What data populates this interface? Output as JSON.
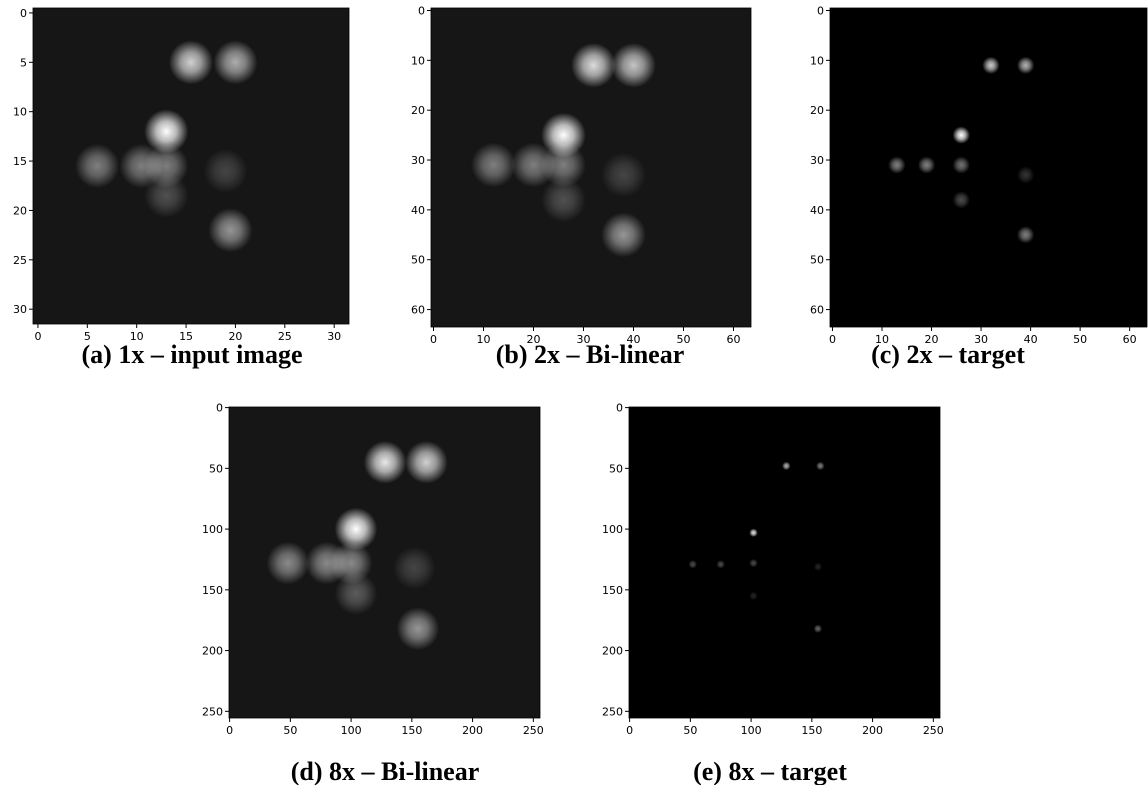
{
  "chart_data": [
    {
      "type": "image",
      "caption": "(a) 1x – input image",
      "background": "#161616",
      "xlim": [
        -0.5,
        31.5
      ],
      "ylim": [
        31.5,
        -0.5
      ],
      "xticks": [
        0,
        5,
        10,
        15,
        20,
        25,
        30
      ],
      "yticks": [
        0,
        5,
        10,
        15,
        20,
        25,
        30
      ],
      "spots": [
        {
          "x": 15.5,
          "y": 5,
          "value": 0.8
        },
        {
          "x": 20,
          "y": 5,
          "value": 0.65
        },
        {
          "x": 13,
          "y": 12,
          "value": 1.0
        },
        {
          "x": 6,
          "y": 15.5,
          "value": 0.45
        },
        {
          "x": 10.5,
          "y": 15.5,
          "value": 0.45
        },
        {
          "x": 13,
          "y": 15.5,
          "value": 0.45
        },
        {
          "x": 13,
          "y": 18.5,
          "value": 0.25
        },
        {
          "x": 19,
          "y": 16,
          "value": 0.2
        },
        {
          "x": 19.5,
          "y": 22,
          "value": 0.55
        }
      ]
    },
    {
      "type": "image",
      "caption": "(b) 2x – Bi-linear",
      "background": "#161616",
      "xlim": [
        -0.5,
        63.5
      ],
      "ylim": [
        63.5,
        -0.5
      ],
      "xticks": [
        0,
        10,
        20,
        30,
        40,
        50,
        60
      ],
      "yticks": [
        0,
        10,
        20,
        30,
        40,
        50,
        60
      ],
      "spots": [
        {
          "x": 32,
          "y": 11,
          "value": 0.85
        },
        {
          "x": 40,
          "y": 11,
          "value": 0.75
        },
        {
          "x": 26,
          "y": 25,
          "value": 1.0
        },
        {
          "x": 12,
          "y": 31,
          "value": 0.45
        },
        {
          "x": 20,
          "y": 31,
          "value": 0.45
        },
        {
          "x": 26,
          "y": 31,
          "value": 0.45
        },
        {
          "x": 26,
          "y": 38,
          "value": 0.25
        },
        {
          "x": 38,
          "y": 33,
          "value": 0.2
        },
        {
          "x": 38,
          "y": 45,
          "value": 0.55
        }
      ]
    },
    {
      "type": "image",
      "caption": "(c) 2x – target",
      "background": "#000000",
      "xlim": [
        -0.5,
        63.5
      ],
      "ylim": [
        63.5,
        -0.5
      ],
      "xticks": [
        0,
        10,
        20,
        30,
        40,
        50,
        60
      ],
      "yticks": [
        0,
        10,
        20,
        30,
        40,
        50,
        60
      ],
      "spots": [
        {
          "x": 32,
          "y": 11,
          "value": 0.8
        },
        {
          "x": 39,
          "y": 11,
          "value": 0.7
        },
        {
          "x": 26,
          "y": 25,
          "value": 1.0
        },
        {
          "x": 13,
          "y": 31,
          "value": 0.5
        },
        {
          "x": 19,
          "y": 31,
          "value": 0.5
        },
        {
          "x": 26,
          "y": 31,
          "value": 0.45
        },
        {
          "x": 26,
          "y": 38,
          "value": 0.3
        },
        {
          "x": 39,
          "y": 33,
          "value": 0.2
        },
        {
          "x": 39,
          "y": 45,
          "value": 0.5
        }
      ]
    },
    {
      "type": "image",
      "caption": "(d) 8x – Bi-linear",
      "background": "#161616",
      "xlim": [
        -0.5,
        255.5
      ],
      "ylim": [
        255.5,
        -0.5
      ],
      "xticks": [
        0,
        50,
        100,
        150,
        200,
        250
      ],
      "yticks": [
        0,
        50,
        100,
        150,
        200,
        250
      ],
      "spots": [
        {
          "x": 128,
          "y": 45,
          "value": 0.9
        },
        {
          "x": 162,
          "y": 45,
          "value": 0.8
        },
        {
          "x": 104,
          "y": 100,
          "value": 1.0
        },
        {
          "x": 48,
          "y": 128,
          "value": 0.5
        },
        {
          "x": 80,
          "y": 128,
          "value": 0.5
        },
        {
          "x": 100,
          "y": 128,
          "value": 0.5
        },
        {
          "x": 104,
          "y": 153,
          "value": 0.3
        },
        {
          "x": 152,
          "y": 132,
          "value": 0.2
        },
        {
          "x": 155,
          "y": 182,
          "value": 0.55
        }
      ]
    },
    {
      "type": "image",
      "caption": "(e) 8x – target",
      "background": "#000000",
      "xlim": [
        -0.5,
        255.5
      ],
      "ylim": [
        255.5,
        -0.5
      ],
      "xticks": [
        0,
        50,
        100,
        150,
        200,
        250
      ],
      "yticks": [
        0,
        50,
        100,
        150,
        200,
        250
      ],
      "spots": [
        {
          "x": 129,
          "y": 48,
          "value": 0.7
        },
        {
          "x": 157,
          "y": 48,
          "value": 0.5
        },
        {
          "x": 102,
          "y": 103,
          "value": 0.9
        },
        {
          "x": 52,
          "y": 129,
          "value": 0.3
        },
        {
          "x": 75,
          "y": 129,
          "value": 0.3
        },
        {
          "x": 102,
          "y": 128,
          "value": 0.3
        },
        {
          "x": 102,
          "y": 155,
          "value": 0.15
        },
        {
          "x": 155,
          "y": 131,
          "value": 0.15
        },
        {
          "x": 155,
          "y": 182,
          "value": 0.4
        }
      ]
    }
  ]
}
